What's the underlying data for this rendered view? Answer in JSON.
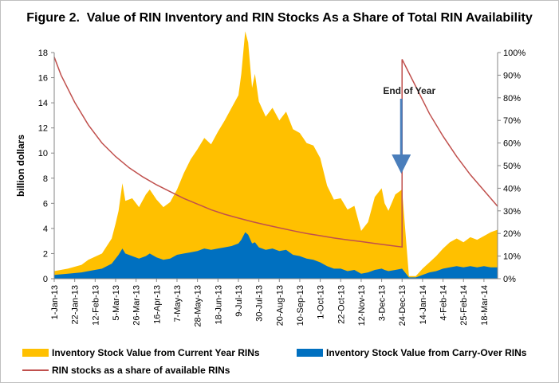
{
  "chart_data": {
    "type": "area",
    "title": "Figure 2.  Value of RIN Inventory and RIN Stocks As a Share of Total RIN Availability",
    "ylabel": "billion dollars",
    "ylim": [
      0,
      18
    ],
    "y_ticks": [
      "0",
      "2",
      "4",
      "6",
      "8",
      "10",
      "12",
      "14",
      "16",
      "18"
    ],
    "y2lim": [
      0,
      100
    ],
    "y2_ticks": [
      "0%",
      "10%",
      "20%",
      "30%",
      "40%",
      "50%",
      "60%",
      "70%",
      "80%",
      "90%",
      "100%"
    ],
    "x_start": "2013-01-01",
    "x_end": "2014-04-01",
    "categories": [
      "1-Jan-13",
      "22-Jan-13",
      "12-Feb-13",
      "5-Mar-13",
      "26-Mar-13",
      "16-Apr-13",
      "7-May-13",
      "28-May-13",
      "18-Jun-13",
      "9-Jul-13",
      "30-Jul-13",
      "20-Aug-13",
      "10-Sep-13",
      "1-Oct-13",
      "22-Oct-13",
      "12-Nov-13",
      "3-Dec-13",
      "24-Dec-13",
      "14-Jan-14",
      "4-Feb-14",
      "25-Feb-14",
      "18-Mar-14"
    ],
    "grid": false,
    "legend_position": "bottom",
    "series": [
      {
        "name": "Inventory Stock Value from Current Year RINs",
        "type": "stacked-area",
        "color": "#FFC000",
        "points": [
          [
            "2013-01-01",
            0.3
          ],
          [
            "2013-01-15",
            0.4
          ],
          [
            "2013-01-29",
            0.6
          ],
          [
            "2013-02-05",
            0.9
          ],
          [
            "2013-02-19",
            1.2
          ],
          [
            "2013-03-01",
            2.0
          ],
          [
            "2013-03-05",
            2.8
          ],
          [
            "2013-03-08",
            3.5
          ],
          [
            "2013-03-12",
            5.2
          ],
          [
            "2013-03-15",
            4.2
          ],
          [
            "2013-03-22",
            4.6
          ],
          [
            "2013-03-29",
            4.1
          ],
          [
            "2013-04-05",
            4.9
          ],
          [
            "2013-04-09",
            5.1
          ],
          [
            "2013-04-16",
            4.6
          ],
          [
            "2013-04-23",
            4.2
          ],
          [
            "2013-04-30",
            4.5
          ],
          [
            "2013-05-07",
            5.2
          ],
          [
            "2013-05-14",
            6.4
          ],
          [
            "2013-05-21",
            7.4
          ],
          [
            "2013-05-28",
            8.1
          ],
          [
            "2013-06-04",
            8.8
          ],
          [
            "2013-06-11",
            8.4
          ],
          [
            "2013-06-18",
            9.3
          ],
          [
            "2013-06-25",
            10.1
          ],
          [
            "2013-07-02",
            11.0
          ],
          [
            "2013-07-09",
            11.8
          ],
          [
            "2013-07-12",
            13.2
          ],
          [
            "2013-07-16",
            16.0
          ],
          [
            "2013-07-19",
            15.3
          ],
          [
            "2013-07-23",
            12.4
          ],
          [
            "2013-07-26",
            13.4
          ],
          [
            "2013-07-30",
            11.6
          ],
          [
            "2013-08-06",
            10.6
          ],
          [
            "2013-08-13",
            11.2
          ],
          [
            "2013-08-20",
            10.4
          ],
          [
            "2013-08-27",
            11.0
          ],
          [
            "2013-09-03",
            10.0
          ],
          [
            "2013-09-10",
            9.8
          ],
          [
            "2013-09-17",
            9.2
          ],
          [
            "2013-09-24",
            9.1
          ],
          [
            "2013-10-01",
            8.3
          ],
          [
            "2013-10-08",
            6.4
          ],
          [
            "2013-10-15",
            5.5
          ],
          [
            "2013-10-22",
            5.6
          ],
          [
            "2013-10-29",
            4.9
          ],
          [
            "2013-11-05",
            5.1
          ],
          [
            "2013-11-12",
            3.4
          ],
          [
            "2013-11-19",
            4.0
          ],
          [
            "2013-11-26",
            5.8
          ],
          [
            "2013-12-03",
            6.4
          ],
          [
            "2013-12-06",
            5.3
          ],
          [
            "2013-12-10",
            4.8
          ],
          [
            "2013-12-17",
            6.0
          ],
          [
            "2013-12-24",
            6.3
          ],
          [
            "2013-12-31",
            0.1
          ],
          [
            "2014-01-07",
            0.1
          ],
          [
            "2014-01-14",
            0.5
          ],
          [
            "2014-01-21",
            0.8
          ],
          [
            "2014-01-28",
            1.2
          ],
          [
            "2014-02-04",
            1.6
          ],
          [
            "2014-02-11",
            2.0
          ],
          [
            "2014-02-18",
            2.2
          ],
          [
            "2014-02-25",
            2.0
          ],
          [
            "2014-03-04",
            2.3
          ],
          [
            "2014-03-11",
            2.2
          ],
          [
            "2014-03-18",
            2.4
          ],
          [
            "2014-03-25",
            2.8
          ],
          [
            "2014-04-01",
            3.0
          ]
        ]
      },
      {
        "name": "Inventory Stock Value from Carry-Over RINs",
        "type": "area",
        "color": "#0070C0",
        "points": [
          [
            "2013-01-01",
            0.3
          ],
          [
            "2013-01-15",
            0.4
          ],
          [
            "2013-01-29",
            0.5
          ],
          [
            "2013-02-05",
            0.6
          ],
          [
            "2013-02-19",
            0.8
          ],
          [
            "2013-03-01",
            1.2
          ],
          [
            "2013-03-05",
            1.6
          ],
          [
            "2013-03-08",
            1.9
          ],
          [
            "2013-03-12",
            2.4
          ],
          [
            "2013-03-15",
            2.0
          ],
          [
            "2013-03-22",
            1.8
          ],
          [
            "2013-03-29",
            1.6
          ],
          [
            "2013-04-05",
            1.8
          ],
          [
            "2013-04-09",
            2.0
          ],
          [
            "2013-04-16",
            1.7
          ],
          [
            "2013-04-23",
            1.5
          ],
          [
            "2013-04-30",
            1.6
          ],
          [
            "2013-05-07",
            1.9
          ],
          [
            "2013-05-14",
            2.0
          ],
          [
            "2013-05-21",
            2.1
          ],
          [
            "2013-05-28",
            2.2
          ],
          [
            "2013-06-04",
            2.4
          ],
          [
            "2013-06-11",
            2.3
          ],
          [
            "2013-06-18",
            2.4
          ],
          [
            "2013-06-25",
            2.5
          ],
          [
            "2013-07-02",
            2.6
          ],
          [
            "2013-07-09",
            2.8
          ],
          [
            "2013-07-12",
            3.1
          ],
          [
            "2013-07-16",
            3.7
          ],
          [
            "2013-07-19",
            3.5
          ],
          [
            "2013-07-23",
            2.8
          ],
          [
            "2013-07-26",
            2.9
          ],
          [
            "2013-07-30",
            2.5
          ],
          [
            "2013-08-06",
            2.3
          ],
          [
            "2013-08-13",
            2.4
          ],
          [
            "2013-08-20",
            2.2
          ],
          [
            "2013-08-27",
            2.3
          ],
          [
            "2013-09-03",
            1.9
          ],
          [
            "2013-09-10",
            1.8
          ],
          [
            "2013-09-17",
            1.6
          ],
          [
            "2013-09-24",
            1.5
          ],
          [
            "2013-10-01",
            1.3
          ],
          [
            "2013-10-08",
            1.0
          ],
          [
            "2013-10-15",
            0.8
          ],
          [
            "2013-10-22",
            0.8
          ],
          [
            "2013-10-29",
            0.6
          ],
          [
            "2013-11-05",
            0.7
          ],
          [
            "2013-11-12",
            0.4
          ],
          [
            "2013-11-19",
            0.5
          ],
          [
            "2013-11-26",
            0.7
          ],
          [
            "2013-12-03",
            0.8
          ],
          [
            "2013-12-06",
            0.7
          ],
          [
            "2013-12-10",
            0.6
          ],
          [
            "2013-12-17",
            0.7
          ],
          [
            "2013-12-24",
            0.8
          ],
          [
            "2013-12-31",
            0.1
          ],
          [
            "2014-01-07",
            0.1
          ],
          [
            "2014-01-14",
            0.3
          ],
          [
            "2014-01-21",
            0.5
          ],
          [
            "2014-01-28",
            0.6
          ],
          [
            "2014-02-04",
            0.8
          ],
          [
            "2014-02-11",
            0.9
          ],
          [
            "2014-02-18",
            1.0
          ],
          [
            "2014-02-25",
            0.9
          ],
          [
            "2014-03-04",
            1.0
          ],
          [
            "2014-03-11",
            0.9
          ],
          [
            "2014-03-18",
            1.0
          ],
          [
            "2014-03-25",
            0.9
          ],
          [
            "2014-04-01",
            0.9
          ]
        ]
      },
      {
        "name": "RIN stocks as a share of available RINs",
        "type": "line",
        "axis": "right",
        "color": "#C0504D",
        "points": [
          [
            "2013-01-01",
            98
          ],
          [
            "2013-01-08",
            90
          ],
          [
            "2013-01-22",
            78
          ],
          [
            "2013-02-05",
            68
          ],
          [
            "2013-02-19",
            60
          ],
          [
            "2013-03-05",
            54
          ],
          [
            "2013-03-19",
            49
          ],
          [
            "2013-04-02",
            45
          ],
          [
            "2013-04-16",
            41.5
          ],
          [
            "2013-04-30",
            38.5
          ],
          [
            "2013-05-14",
            35.5
          ],
          [
            "2013-05-28",
            33
          ],
          [
            "2013-06-11",
            30.5
          ],
          [
            "2013-06-25",
            28.5
          ],
          [
            "2013-07-09",
            26.8
          ],
          [
            "2013-07-23",
            25.2
          ],
          [
            "2013-08-06",
            23.8
          ],
          [
            "2013-08-20",
            22.5
          ],
          [
            "2013-09-03",
            21.2
          ],
          [
            "2013-09-17",
            20.0
          ],
          [
            "2013-10-01",
            19.0
          ],
          [
            "2013-10-15",
            18.0
          ],
          [
            "2013-10-29",
            17.2
          ],
          [
            "2013-11-12",
            16.4
          ],
          [
            "2013-11-26",
            15.6
          ],
          [
            "2013-12-10",
            14.8
          ],
          [
            "2013-12-24",
            14.0
          ],
          [
            "2013-12-24",
            97
          ],
          [
            "2014-01-07",
            85
          ],
          [
            "2014-01-21",
            73
          ],
          [
            "2014-02-04",
            63
          ],
          [
            "2014-02-18",
            54
          ],
          [
            "2014-03-04",
            46
          ],
          [
            "2014-03-18",
            39
          ],
          [
            "2014-04-01",
            32
          ]
        ]
      }
    ],
    "annotations": [
      {
        "text": "End of Year",
        "x": "2013-12-24"
      }
    ]
  }
}
